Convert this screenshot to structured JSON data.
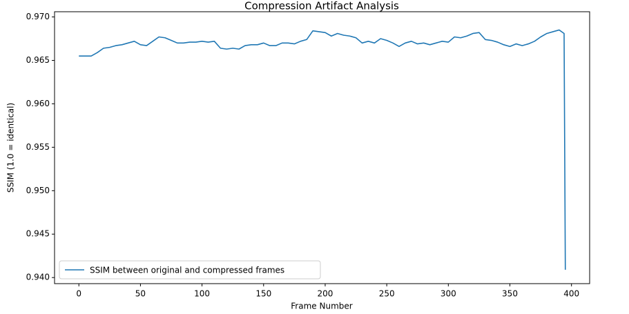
{
  "chart_data": {
    "type": "line",
    "title": "Compression Artifact Analysis",
    "xlabel": "Frame Number",
    "ylabel": "SSIM (1.0 = identical)",
    "x": [
      0,
      5,
      10,
      15,
      20,
      25,
      30,
      35,
      40,
      45,
      50,
      55,
      60,
      65,
      70,
      75,
      80,
      85,
      90,
      95,
      100,
      105,
      110,
      115,
      120,
      125,
      130,
      135,
      140,
      145,
      150,
      155,
      160,
      165,
      170,
      175,
      180,
      185,
      190,
      195,
      200,
      205,
      210,
      215,
      220,
      225,
      230,
      235,
      240,
      245,
      250,
      255,
      260,
      265,
      270,
      275,
      280,
      285,
      290,
      295,
      300,
      305,
      310,
      315,
      320,
      325,
      330,
      335,
      340,
      345,
      350,
      355,
      360,
      365,
      370,
      375,
      380,
      385,
      390,
      394,
      395
    ],
    "series": [
      {
        "name": "SSIM between original and compressed frames",
        "color": "#1f77b4",
        "values": [
          0.9655,
          0.9655,
          0.9655,
          0.9659,
          0.9664,
          0.9665,
          0.9667,
          0.9668,
          0.967,
          0.9672,
          0.9668,
          0.9667,
          0.9672,
          0.9677,
          0.9676,
          0.9673,
          0.967,
          0.967,
          0.9671,
          0.9671,
          0.9672,
          0.9671,
          0.9672,
          0.9664,
          0.9663,
          0.9664,
          0.9663,
          0.9667,
          0.9668,
          0.9668,
          0.967,
          0.9667,
          0.9667,
          0.967,
          0.967,
          0.9669,
          0.9672,
          0.9674,
          0.9684,
          0.9683,
          0.9682,
          0.9678,
          0.9681,
          0.9679,
          0.9678,
          0.9676,
          0.967,
          0.9672,
          0.967,
          0.9675,
          0.9673,
          0.967,
          0.9666,
          0.967,
          0.9672,
          0.9669,
          0.967,
          0.9668,
          0.967,
          0.9672,
          0.9671,
          0.9677,
          0.9676,
          0.9678,
          0.9681,
          0.9682,
          0.9674,
          0.9673,
          0.9671,
          0.9668,
          0.9666,
          0.9669,
          0.9667,
          0.9669,
          0.9672,
          0.9677,
          0.9681,
          0.9683,
          0.9685,
          0.9681,
          0.9409
        ]
      }
    ],
    "xlim": [
      -19.75,
      414.75
    ],
    "xticks": [
      0,
      50,
      100,
      150,
      200,
      250,
      300,
      350,
      400
    ],
    "ylim": [
      0.9393,
      0.9706
    ],
    "yticks": [
      {
        "value": 0.94,
        "label": "0.940"
      },
      {
        "value": 0.945,
        "label": "0.945"
      },
      {
        "value": 0.95,
        "label": "0.950"
      },
      {
        "value": 0.955,
        "label": "0.955"
      },
      {
        "value": 0.96,
        "label": "0.960"
      },
      {
        "value": 0.965,
        "label": "0.965"
      },
      {
        "value": 0.97,
        "label": "0.970"
      }
    ],
    "grid": false,
    "legend": "lower left"
  }
}
